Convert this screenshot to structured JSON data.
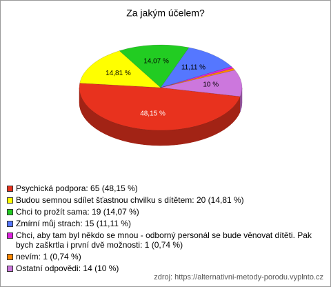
{
  "chart_data": {
    "type": "pie3d",
    "title": "Za jakým účelem?",
    "categories": [
      "Psychická podpora: 65 (48,15 %)",
      "Budou semnou sdílet šťastnou chvilku s dítětem: 20 (14,81 %)",
      "Chci to prožít sama: 19 (14,07 %)",
      "Zmírní můj strach: 15 (11,11 %)",
      "Chci, aby tam byl někdo se mnou - odborný personál se bude věnovat dítěti. Pak bych zaškrtla i první dvě možnosti: 1 (0,74 %)",
      "nevím: 1 (0,74 %)",
      "Ostatní odpovědi: 14 (10 %)"
    ],
    "values": [
      48.15,
      14.81,
      14.07,
      11.11,
      0.74,
      0.74,
      10
    ],
    "value_labels": [
      "48,15 %",
      "14,81 %",
      "14,07 %",
      "11,11 %",
      null,
      null,
      "10 %"
    ],
    "colors": [
      "#e8321e",
      "#ffff00",
      "#22cc22",
      "#5577ff",
      "#dd22dd",
      "#ff8800",
      "#cc77dd"
    ],
    "source": "zdroj: https://alternativni-metody-porodu.vyplnto.cz"
  }
}
